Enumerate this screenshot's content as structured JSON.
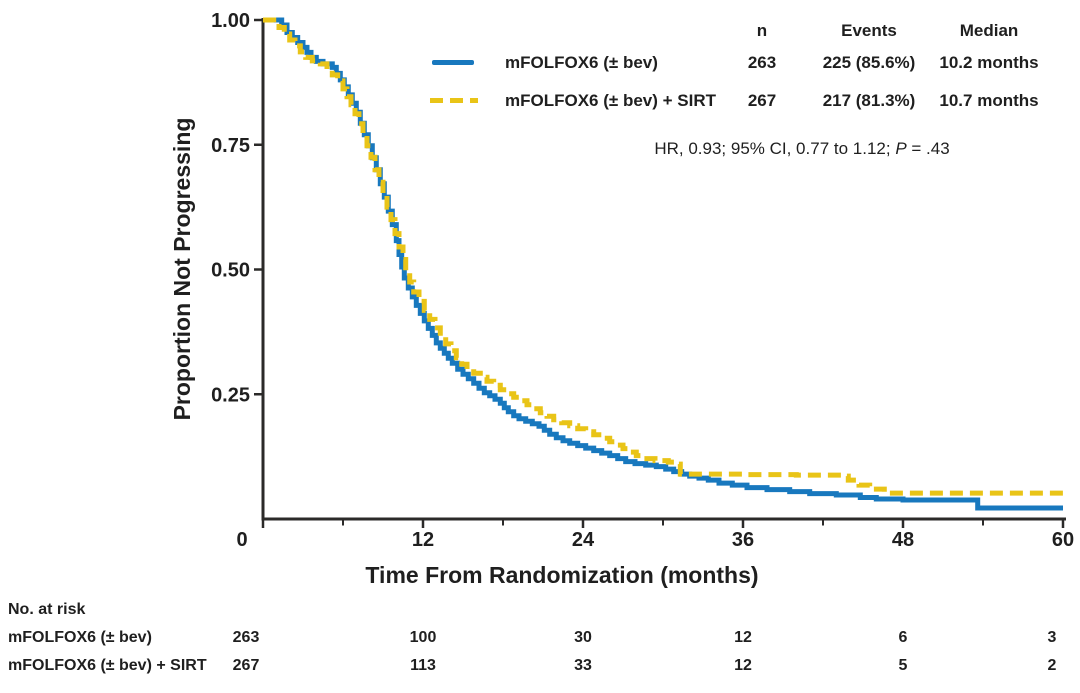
{
  "colors": {
    "arm1_blue": "#1878be",
    "arm2_yellow": "#e9c417",
    "axis": "#2b2a29",
    "text": "#1f1f1f"
  },
  "legend_table": {
    "headers": {
      "n": "n",
      "events": "Events",
      "median": "Median"
    },
    "rows": [
      {
        "label": "mFOLFOX6 (± bev)",
        "n": "263",
        "events": "225 (85.6%)",
        "median": "10.2 months",
        "swatch": "solid-blue"
      },
      {
        "label": "mFOLFOX6 (± bev) + SIRT",
        "n": "267",
        "events": "217 (81.3%)",
        "median": "10.7 months",
        "swatch": "dashed-yellow"
      }
    ]
  },
  "annotation": {
    "part1": "HR, 0.93; 95% CI, 0.77 to 1.12; ",
    "p_symbol": "P",
    "part2": " = .43"
  },
  "risk_table": {
    "title": "No. at risk",
    "time_points": [
      "0",
      "12",
      "24",
      "36",
      "48",
      "60"
    ],
    "rows": [
      {
        "label": "mFOLFOX6 (± bev)",
        "counts": [
          "263",
          "100",
          "30",
          "12",
          "6",
          "3"
        ]
      },
      {
        "label": "mFOLFOX6 (± bev) + SIRT",
        "counts": [
          "267",
          "113",
          "33",
          "12",
          "5",
          "2"
        ]
      }
    ]
  },
  "chart_data": {
    "type": "line",
    "subtype": "kaplan-meier-step",
    "title": "",
    "xlabel": "Time From Randomization (months)",
    "ylabel": "Proportion Not Progressing",
    "xlim": [
      0,
      60
    ],
    "ylim": [
      0,
      1.0
    ],
    "x_ticks": [
      "0",
      "12",
      "24",
      "36",
      "48",
      "60"
    ],
    "x_tick_values": [
      0,
      12,
      24,
      36,
      48,
      60
    ],
    "x_minor_tick_values": [
      6,
      18,
      30,
      42,
      54
    ],
    "y_ticks": [
      "1.00",
      "0.75",
      "0.50",
      "0.25"
    ],
    "y_tick_values": [
      1.0,
      0.75,
      0.5,
      0.25
    ],
    "grid": false,
    "legend_position": "top-right",
    "series": [
      {
        "name": "mFOLFOX6 (± bev)",
        "color": "#1878be",
        "line_style": "solid",
        "n": 263,
        "events": "225 (85.6%)",
        "median_months": 10.2,
        "points": [
          [
            0,
            1.0
          ],
          [
            1.1,
            1.0
          ],
          [
            1.4,
            0.99
          ],
          [
            1.8,
            0.975
          ],
          [
            2.2,
            0.965
          ],
          [
            2.6,
            0.955
          ],
          [
            3.0,
            0.945
          ],
          [
            3.3,
            0.935
          ],
          [
            3.6,
            0.925
          ],
          [
            4.0,
            0.917
          ],
          [
            4.5,
            0.912
          ],
          [
            5.2,
            0.905
          ],
          [
            5.5,
            0.893
          ],
          [
            5.8,
            0.88
          ],
          [
            6.1,
            0.866
          ],
          [
            6.4,
            0.85
          ],
          [
            6.7,
            0.833
          ],
          [
            7.0,
            0.815
          ],
          [
            7.3,
            0.793
          ],
          [
            7.6,
            0.77
          ],
          [
            7.9,
            0.748
          ],
          [
            8.2,
            0.724
          ],
          [
            8.5,
            0.7
          ],
          [
            8.8,
            0.672
          ],
          [
            9.1,
            0.645
          ],
          [
            9.4,
            0.617
          ],
          [
            9.7,
            0.59
          ],
          [
            10.0,
            0.558
          ],
          [
            10.2,
            0.53
          ],
          [
            10.4,
            0.505
          ],
          [
            10.6,
            0.483
          ],
          [
            10.9,
            0.463
          ],
          [
            11.2,
            0.445
          ],
          [
            11.5,
            0.428
          ],
          [
            11.8,
            0.412
          ],
          [
            12.1,
            0.397
          ],
          [
            12.4,
            0.382
          ],
          [
            12.7,
            0.368
          ],
          [
            13.0,
            0.353
          ],
          [
            13.3,
            0.342
          ],
          [
            13.6,
            0.332
          ],
          [
            13.9,
            0.322
          ],
          [
            14.2,
            0.312
          ],
          [
            14.6,
            0.3
          ],
          [
            15.0,
            0.29
          ],
          [
            15.4,
            0.281
          ],
          [
            15.8,
            0.272
          ],
          [
            16.2,
            0.262
          ],
          [
            16.6,
            0.253
          ],
          [
            17.0,
            0.247
          ],
          [
            17.4,
            0.24
          ],
          [
            17.8,
            0.232
          ],
          [
            18.1,
            0.223
          ],
          [
            18.4,
            0.215
          ],
          [
            18.8,
            0.207
          ],
          [
            19.2,
            0.201
          ],
          [
            19.7,
            0.196
          ],
          [
            20.2,
            0.191
          ],
          [
            20.7,
            0.186
          ],
          [
            21.1,
            0.178
          ],
          [
            21.5,
            0.17
          ],
          [
            22.0,
            0.163
          ],
          [
            22.5,
            0.157
          ],
          [
            23.0,
            0.152
          ],
          [
            23.6,
            0.147
          ],
          [
            24.2,
            0.142
          ],
          [
            24.8,
            0.137
          ],
          [
            25.4,
            0.132
          ],
          [
            26.0,
            0.127
          ],
          [
            26.6,
            0.121
          ],
          [
            27.2,
            0.115
          ],
          [
            27.9,
            0.111
          ],
          [
            28.7,
            0.108
          ],
          [
            29.5,
            0.105
          ],
          [
            30.2,
            0.1
          ],
          [
            30.8,
            0.095
          ],
          [
            31.4,
            0.09
          ],
          [
            32.0,
            0.086
          ],
          [
            32.7,
            0.082
          ],
          [
            33.4,
            0.078
          ],
          [
            34.2,
            0.072
          ],
          [
            35.2,
            0.068
          ],
          [
            36.3,
            0.063
          ],
          [
            37.8,
            0.059
          ],
          [
            39.5,
            0.055
          ],
          [
            41.0,
            0.051
          ],
          [
            43.0,
            0.048
          ],
          [
            44.8,
            0.043
          ],
          [
            46.0,
            0.04
          ],
          [
            48.0,
            0.038
          ],
          [
            53.2,
            0.038
          ],
          [
            53.6,
            0.022
          ],
          [
            60,
            0.022
          ]
        ]
      },
      {
        "name": "mFOLFOX6 (± bev) + SIRT",
        "color": "#e9c417",
        "line_style": "dashed",
        "n": 267,
        "events": "217 (81.3%)",
        "median_months": 10.7,
        "points": [
          [
            0,
            1.0
          ],
          [
            0.8,
            0.995
          ],
          [
            1.2,
            0.985
          ],
          [
            1.6,
            0.972
          ],
          [
            2.0,
            0.96
          ],
          [
            2.4,
            0.948
          ],
          [
            2.8,
            0.936
          ],
          [
            3.2,
            0.925
          ],
          [
            3.7,
            0.918
          ],
          [
            4.3,
            0.912
          ],
          [
            4.8,
            0.9
          ],
          [
            5.2,
            0.89
          ],
          [
            5.6,
            0.878
          ],
          [
            6.0,
            0.862
          ],
          [
            6.3,
            0.846
          ],
          [
            6.6,
            0.83
          ],
          [
            6.9,
            0.812
          ],
          [
            7.2,
            0.792
          ],
          [
            7.5,
            0.77
          ],
          [
            7.8,
            0.748
          ],
          [
            8.1,
            0.725
          ],
          [
            8.4,
            0.7
          ],
          [
            8.7,
            0.675
          ],
          [
            9.0,
            0.65
          ],
          [
            9.3,
            0.625
          ],
          [
            9.6,
            0.6
          ],
          [
            9.9,
            0.572
          ],
          [
            10.2,
            0.545
          ],
          [
            10.5,
            0.52
          ],
          [
            10.7,
            0.497
          ],
          [
            11.0,
            0.475
          ],
          [
            11.3,
            0.455
          ],
          [
            11.7,
            0.436
          ],
          [
            12.1,
            0.418
          ],
          [
            12.5,
            0.4
          ],
          [
            12.9,
            0.383
          ],
          [
            13.3,
            0.366
          ],
          [
            13.7,
            0.351
          ],
          [
            14.1,
            0.337
          ],
          [
            14.5,
            0.323
          ],
          [
            14.9,
            0.31
          ],
          [
            15.3,
            0.3
          ],
          [
            15.8,
            0.292
          ],
          [
            16.3,
            0.284
          ],
          [
            16.8,
            0.276
          ],
          [
            17.3,
            0.268
          ],
          [
            17.8,
            0.259
          ],
          [
            18.3,
            0.251
          ],
          [
            18.8,
            0.244
          ],
          [
            19.3,
            0.237
          ],
          [
            19.8,
            0.229
          ],
          [
            20.3,
            0.221
          ],
          [
            20.8,
            0.213
          ],
          [
            21.3,
            0.206
          ],
          [
            21.8,
            0.199
          ],
          [
            22.4,
            0.193
          ],
          [
            23.0,
            0.187
          ],
          [
            23.6,
            0.181
          ],
          [
            24.2,
            0.175
          ],
          [
            24.8,
            0.169
          ],
          [
            25.4,
            0.162
          ],
          [
            26.0,
            0.155
          ],
          [
            26.5,
            0.148
          ],
          [
            27.0,
            0.141
          ],
          [
            27.5,
            0.134
          ],
          [
            28.0,
            0.127
          ],
          [
            28.6,
            0.121
          ],
          [
            29.4,
            0.117
          ],
          [
            30.4,
            0.114
          ],
          [
            31.1,
            0.11
          ],
          [
            31.3,
            0.09
          ],
          [
            36.0,
            0.089
          ],
          [
            40.0,
            0.088
          ],
          [
            43.4,
            0.086
          ],
          [
            43.9,
            0.078
          ],
          [
            44.7,
            0.068
          ],
          [
            45.5,
            0.06
          ],
          [
            46.6,
            0.052
          ],
          [
            60,
            0.052
          ]
        ]
      }
    ]
  }
}
